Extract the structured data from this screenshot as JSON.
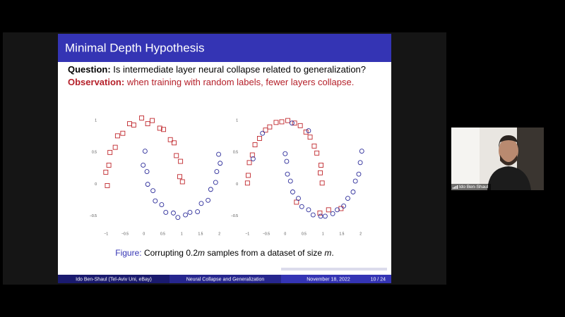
{
  "slide": {
    "title": "Minimal Depth Hypothesis",
    "question_label": "Question:",
    "question": "Is intermediate layer neural collapse related to generalization?",
    "observation_label": "Observation:",
    "observation": "when training with random labels, fewer layers collapse.",
    "figures": [
      {
        "type": "scatter",
        "xlim": [
          -1.25,
          2.25
        ],
        "ylim": [
          -0.7,
          1.2
        ],
        "xticks": [
          {
            "value": -1,
            "label": "−1"
          },
          {
            "value": -0.5,
            "label": "−0.5"
          },
          0,
          0.5,
          1,
          1.5,
          2
        ],
        "yticks": [
          1,
          0.5,
          0,
          {
            "value": -0.5,
            "label": "−0.5"
          }
        ],
        "series": [
          {
            "marker": "square",
            "color": "#c0282d",
            "x": [
              1.02,
              0.95,
              0.97,
              0.86,
              0.8,
              0.7,
              0.52,
              0.42,
              0.22,
              0.1,
              -0.06,
              -0.27,
              -0.38,
              -0.56,
              -0.7,
              -0.76,
              -0.9,
              -0.93,
              -1.01,
              -0.97
            ],
            "y": [
              0.04,
              0.12,
              0.36,
              0.45,
              0.65,
              0.7,
              0.86,
              0.88,
              1.0,
              0.95,
              1.04,
              0.93,
              0.95,
              0.8,
              0.76,
              0.58,
              0.5,
              0.3,
              0.19,
              -0.02
            ]
          },
          {
            "marker": "circle",
            "color": "#2c2c9a",
            "x": [
              0.03,
              -0.02,
              0.08,
              0.1,
              0.24,
              0.3,
              0.47,
              0.58,
              0.78,
              0.9,
              1.1,
              1.22,
              1.42,
              1.52,
              1.7,
              1.77,
              1.9,
              1.93,
              2.02,
              1.98
            ],
            "y": [
              0.52,
              0.3,
              0.2,
              0.0,
              -0.1,
              -0.26,
              -0.32,
              -0.44,
              -0.45,
              -0.52,
              -0.48,
              -0.44,
              -0.43,
              -0.3,
              -0.25,
              -0.08,
              0.03,
              0.2,
              0.33,
              0.47
            ]
          }
        ]
      },
      {
        "type": "scatter",
        "xlim": [
          -1.25,
          2.25
        ],
        "ylim": [
          -0.7,
          1.2
        ],
        "xticks": [
          {
            "value": -1,
            "label": "−1"
          },
          {
            "value": -0.5,
            "label": "−0.5"
          },
          0,
          0.5,
          1,
          1.5,
          2
        ],
        "yticks": [
          1,
          0.5,
          0,
          {
            "value": -0.5,
            "label": "−0.5"
          }
        ],
        "series": [
          {
            "marker": "square",
            "color": "#c0282d",
            "x": [
              0.98,
              0.93,
              0.95,
              0.84,
              0.77,
              0.66,
              0.55,
              0.4,
              0.25,
              0.07,
              -0.09,
              -0.24,
              -0.41,
              -0.52,
              -0.68,
              -0.8,
              -0.87,
              -0.95,
              -0.98,
              -1.0,
              0.92,
              1.15,
              1.48,
              0.3
            ],
            "y": [
              0.02,
              0.18,
              0.3,
              0.49,
              0.6,
              0.74,
              0.82,
              0.92,
              0.96,
              1.0,
              0.98,
              0.97,
              0.9,
              0.85,
              0.72,
              0.62,
              0.46,
              0.34,
              0.14,
              0.02,
              -0.45,
              -0.4,
              -0.38,
              -0.28
            ]
          },
          {
            "marker": "circle",
            "color": "#2c2c9a",
            "x": [
              0.0,
              0.04,
              0.06,
              0.14,
              0.2,
              0.35,
              0.44,
              0.62,
              0.74,
              0.94,
              1.06,
              1.26,
              1.38,
              1.55,
              1.66,
              1.8,
              1.86,
              1.95,
              1.99,
              2.03,
              -0.6,
              0.18,
              -0.85,
              0.62
            ],
            "y": [
              0.48,
              0.36,
              0.16,
              0.05,
              -0.12,
              -0.22,
              -0.35,
              -0.4,
              -0.48,
              -0.5,
              -0.5,
              -0.46,
              -0.4,
              -0.34,
              -0.22,
              -0.12,
              0.05,
              0.16,
              0.34,
              0.52,
              0.8,
              0.96,
              0.4,
              0.84
            ]
          }
        ]
      }
    ],
    "caption": {
      "label": "Figure:",
      "parts": [
        "Corrupting 0.2",
        "m",
        " samples from a dataset of size ",
        "m",
        "."
      ]
    },
    "footer": {
      "author": "Ido Ben-Shaul  (Tel-Aviv Uni, eBay)",
      "talk": "Neural Collapse and Generalization",
      "date": "November 18, 2022",
      "page": "10 / 24"
    }
  },
  "video": {
    "name": "Ido Ben-Shaul"
  }
}
